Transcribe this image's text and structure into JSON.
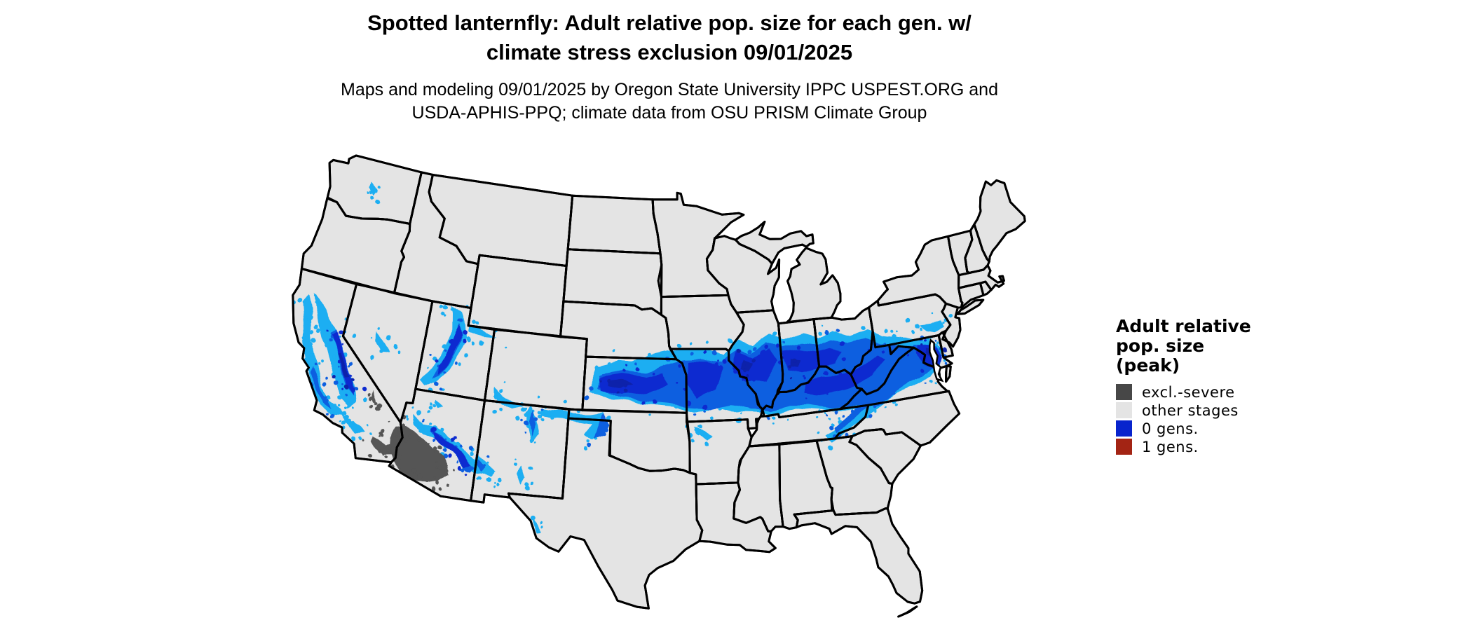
{
  "header": {
    "title_line1": "Spotted lanternfly: Adult relative pop. size for each gen. w/",
    "title_line2": "climate stress exclusion 09/01/2025",
    "subtitle_line1": "Maps and modeling 09/01/2025 by Oregon State University IPPC USPEST.ORG and",
    "subtitle_line2": "USDA-APHIS-PPQ; climate data from OSU PRISM Climate Group"
  },
  "legend": {
    "title_line1": "Adult relative",
    "title_line2": "pop. size",
    "title_line3": "(peak)",
    "items": [
      {
        "label": "excl.-severe",
        "color": "#474747"
      },
      {
        "label": "other stages",
        "color": "#e4e4e4"
      },
      {
        "label": "0 gens.",
        "color": "#0824cd"
      },
      {
        "label": "1 gens.",
        "color": "#a32414"
      }
    ]
  },
  "map": {
    "background": "#ffffff",
    "state_fill": "#e4e4e4",
    "state_border": "#000000",
    "raster_palette": {
      "low": "#1aaef2",
      "medium": "#0f5fe0",
      "high": "#0a2cd0",
      "peak": "#0820aa",
      "excluded": "#545454"
    }
  }
}
